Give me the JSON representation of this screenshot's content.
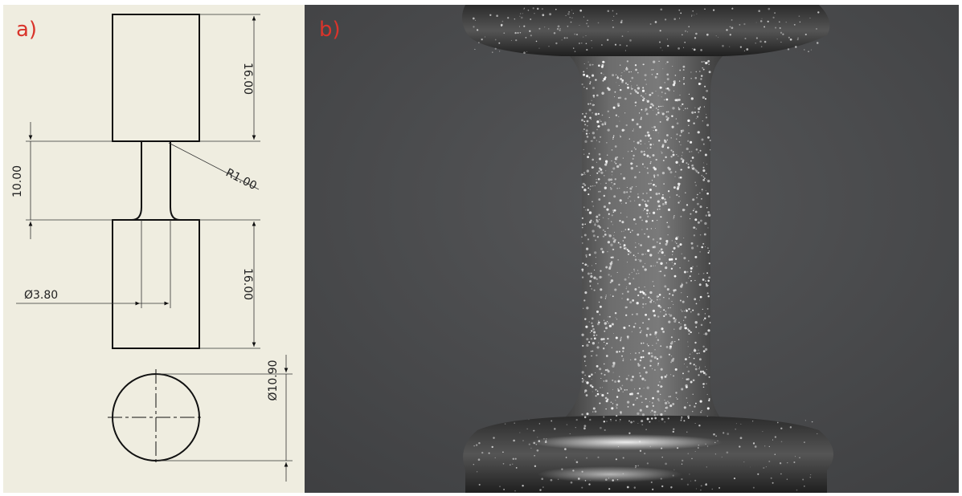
{
  "panel_a": {
    "label": "a)",
    "dimensions": {
      "top_grip_length": "16.00",
      "gauge_length": "10.00",
      "fillet_radius": "R1.00",
      "bottom_grip_length": "16.00",
      "gauge_diameter": "Ø3.80",
      "grip_diameter": "Ø10.90"
    }
  },
  "panel_b": {
    "label": "b)"
  },
  "colors": {
    "label": "#d9342b",
    "drawing_bg": "#efede0",
    "photo_bg": "#4a4b4d",
    "line": "#111111"
  }
}
